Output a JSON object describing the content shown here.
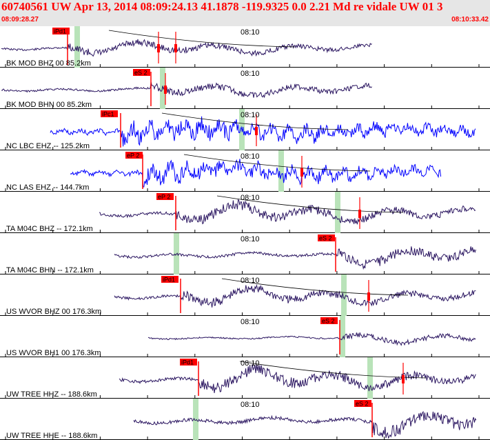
{
  "header": {
    "title": "60740561 UW Apr 13, 2014 08:09:24.13   41.1878 -119.9325  0.0 2.21 Md re vidale UW 01   3",
    "start_time": "08:09:28.27",
    "end_time": "08:10:33.42"
  },
  "colors": {
    "header_text": "#ff0000",
    "trace_dark": "#2a1560",
    "trace_blue": "#0000ff",
    "pick": "#ff0000",
    "window": "#b9e3b9"
  },
  "traces": [
    {
      "label": "BK MOD BHZ 00 85.2km",
      "time_label": "08:10",
      "pick": "iPd1",
      "color": "dark",
      "start": 0.0,
      "amp": 0.4
    },
    {
      "label": "BK MOD BHN 00 85.2km",
      "time_label": "08:10",
      "pick": "eS 2",
      "color": "dark",
      "start": 0.0,
      "amp": 0.4
    },
    {
      "label": "NC LBC EHZ -- 125.2km",
      "time_label": "08:10",
      "pick": "iPc1",
      "color": "blue",
      "start": 0.1,
      "amp": 0.55
    },
    {
      "label": "NC LAS EHZ -- 144.7km",
      "time_label": "08:10",
      "pick": "eP 2",
      "color": "blue",
      "start": 0.14,
      "amp": 0.5
    },
    {
      "label": "TA M04C BHZ -- 172.1km",
      "time_label": "08:10",
      "pick": "eP 2",
      "color": "dark",
      "start": 0.2,
      "amp": 0.6
    },
    {
      "label": "TA M04C BHN -- 172.1km",
      "time_label": "08:10",
      "pick": "eS 2",
      "color": "dark",
      "start": 0.23,
      "amp": 0.55
    },
    {
      "label": "US WVOR BHZ 00 176.3km",
      "time_label": "08:10",
      "pick": "iPd1",
      "color": "dark",
      "start": 0.23,
      "amp": 0.55
    },
    {
      "label": "US WVOR BH1 00 176.3km",
      "time_label": "08:10",
      "pick": "eS 2",
      "color": "dark",
      "start": 0.3,
      "amp": 0.3
    },
    {
      "label": "UW TREE HHZ -- 188.6km",
      "time_label": "08:10",
      "pick": "iPd1",
      "color": "dark",
      "start": 0.24,
      "amp": 0.65
    },
    {
      "label": "UW TREE HHE -- 188.6km",
      "time_label": "08:10",
      "pick": "eS 2",
      "color": "dark",
      "start": 0.27,
      "amp": 0.7
    }
  ]
}
